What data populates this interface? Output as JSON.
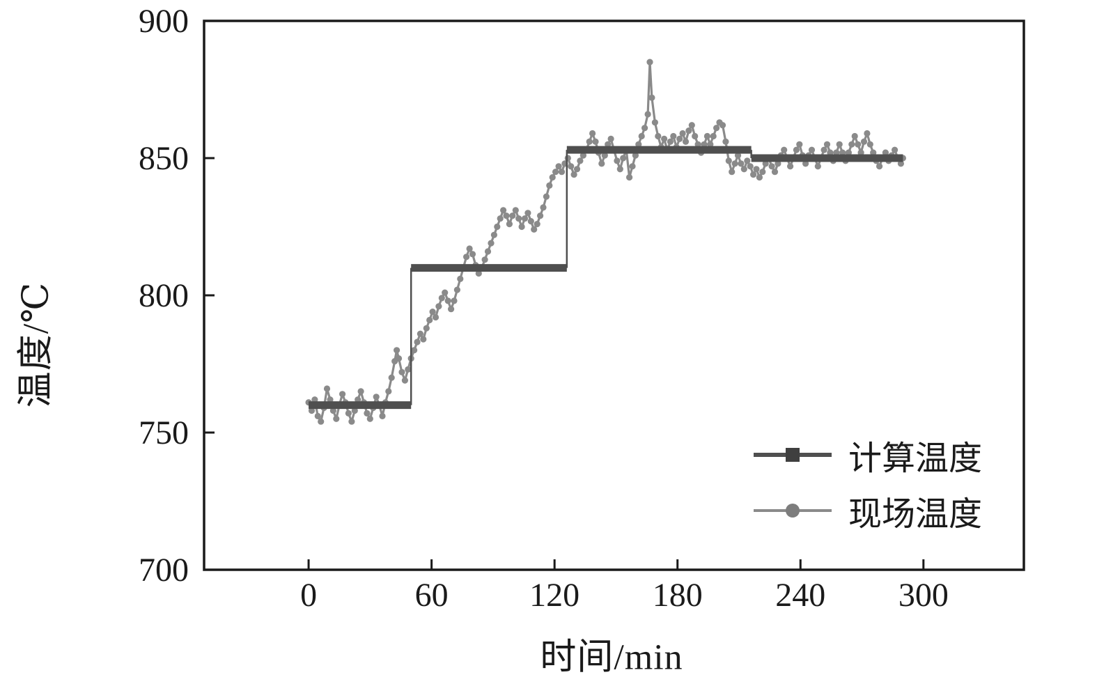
{
  "chart_data": {
    "type": "line",
    "title": "",
    "xlabel": "时间/min",
    "ylabel": "温度/℃",
    "xlim": [
      -51,
      349
    ],
    "ylim": [
      700,
      900
    ],
    "xticks": [
      0,
      60,
      120,
      180,
      240,
      300
    ],
    "yticks": [
      700,
      750,
      800,
      850,
      900
    ],
    "grid": false,
    "legend_position": "lower right",
    "frame_color": "#1a1a1a",
    "series": [
      {
        "name": "计算温度",
        "style": "step",
        "color": "#4f4f4f",
        "marker": "square",
        "segments": [
          {
            "x_start": 0,
            "x_end": 50,
            "y": 760
          },
          {
            "x_start": 50,
            "x_end": 126,
            "y": 810
          },
          {
            "x_start": 126,
            "x_end": 216,
            "y": 853
          },
          {
            "x_start": 216,
            "x_end": 290,
            "y": 850
          }
        ]
      },
      {
        "name": "现场温度",
        "style": "noisy-line",
        "color": "#8a8a8a",
        "marker": "circle",
        "points": [
          [
            0,
            761
          ],
          [
            1.5,
            758
          ],
          [
            3,
            762
          ],
          [
            4.5,
            756
          ],
          [
            6,
            754
          ],
          [
            7.5,
            759
          ],
          [
            9,
            766
          ],
          [
            10.5,
            762
          ],
          [
            12,
            758
          ],
          [
            13.5,
            755
          ],
          [
            15,
            760
          ],
          [
            16.5,
            764
          ],
          [
            18,
            761
          ],
          [
            19.5,
            757
          ],
          [
            21,
            754
          ],
          [
            22.5,
            758
          ],
          [
            24,
            762
          ],
          [
            25.5,
            765
          ],
          [
            27,
            761
          ],
          [
            28.5,
            757
          ],
          [
            30,
            755
          ],
          [
            31.5,
            759
          ],
          [
            33,
            763
          ],
          [
            34.5,
            760
          ],
          [
            36,
            756
          ],
          [
            37.5,
            761
          ],
          [
            39,
            765
          ],
          [
            40.5,
            770
          ],
          [
            42,
            776
          ],
          [
            43,
            780
          ],
          [
            44,
            777
          ],
          [
            45.5,
            772
          ],
          [
            47,
            769
          ],
          [
            48.5,
            773
          ],
          [
            50,
            777
          ],
          [
            51.5,
            780
          ],
          [
            53,
            783
          ],
          [
            54.5,
            786
          ],
          [
            56,
            784
          ],
          [
            57.5,
            788
          ],
          [
            59,
            791
          ],
          [
            60.5,
            794
          ],
          [
            62,
            792
          ],
          [
            63.5,
            796
          ],
          [
            65,
            799
          ],
          [
            66.5,
            801
          ],
          [
            68,
            798
          ],
          [
            69.5,
            795
          ],
          [
            71,
            798
          ],
          [
            72.5,
            802
          ],
          [
            74,
            806
          ],
          [
            75.5,
            810
          ],
          [
            77,
            814
          ],
          [
            78.5,
            817
          ],
          [
            80,
            815
          ],
          [
            81.5,
            811
          ],
          [
            83,
            808
          ],
          [
            84.5,
            810
          ],
          [
            86,
            813
          ],
          [
            87.5,
            816
          ],
          [
            89,
            819
          ],
          [
            90.5,
            822
          ],
          [
            92,
            825
          ],
          [
            93.5,
            828
          ],
          [
            95,
            831
          ],
          [
            96.5,
            829
          ],
          [
            98,
            826
          ],
          [
            99.5,
            829
          ],
          [
            101,
            831
          ],
          [
            102.5,
            828
          ],
          [
            104,
            825
          ],
          [
            105.5,
            828
          ],
          [
            107,
            830
          ],
          [
            108.5,
            827
          ],
          [
            110,
            824
          ],
          [
            111.5,
            826
          ],
          [
            113,
            829
          ],
          [
            114.5,
            832
          ],
          [
            116,
            836
          ],
          [
            117.5,
            840
          ],
          [
            119,
            843
          ],
          [
            120.5,
            845
          ],
          [
            122,
            847
          ],
          [
            123.5,
            845
          ],
          [
            125,
            848
          ],
          [
            126.5,
            850
          ],
          [
            128,
            847
          ],
          [
            129.5,
            844
          ],
          [
            131,
            846
          ],
          [
            132.5,
            849
          ],
          [
            134,
            851
          ],
          [
            135.5,
            853
          ],
          [
            137,
            856
          ],
          [
            138.5,
            859
          ],
          [
            140,
            856
          ],
          [
            141.5,
            852
          ],
          [
            143,
            848
          ],
          [
            144.5,
            851
          ],
          [
            146,
            855
          ],
          [
            147.5,
            857
          ],
          [
            149,
            853
          ],
          [
            150.5,
            849
          ],
          [
            152,
            846
          ],
          [
            153.5,
            850
          ],
          [
            155,
            853
          ],
          [
            156.5,
            843
          ],
          [
            158,
            847
          ],
          [
            159.5,
            851
          ],
          [
            161,
            855
          ],
          [
            162.5,
            858
          ],
          [
            164,
            861
          ],
          [
            165.5,
            866
          ],
          [
            166.5,
            885
          ],
          [
            167.5,
            872
          ],
          [
            169,
            863
          ],
          [
            170.5,
            858
          ],
          [
            172,
            854
          ],
          [
            173.5,
            857
          ],
          [
            175,
            853
          ],
          [
            176.5,
            856
          ],
          [
            178,
            858
          ],
          [
            179.5,
            854
          ],
          [
            181,
            857
          ],
          [
            182.5,
            859
          ],
          [
            184,
            856
          ],
          [
            185.5,
            860
          ],
          [
            187,
            862
          ],
          [
            188.5,
            858
          ],
          [
            190,
            855
          ],
          [
            191.5,
            852
          ],
          [
            193,
            855
          ],
          [
            194.5,
            858
          ],
          [
            196,
            855
          ],
          [
            197.5,
            858
          ],
          [
            199,
            861
          ],
          [
            200.5,
            863
          ],
          [
            202,
            862
          ],
          [
            203.5,
            856
          ],
          [
            205,
            849
          ],
          [
            206.5,
            845
          ],
          [
            208,
            848
          ],
          [
            209.5,
            851
          ],
          [
            211,
            848
          ],
          [
            212.5,
            846
          ],
          [
            214,
            849
          ],
          [
            215.5,
            847
          ],
          [
            217,
            844
          ],
          [
            218.5,
            846
          ],
          [
            220,
            843
          ],
          [
            221.5,
            845
          ],
          [
            223,
            848
          ],
          [
            224.5,
            850
          ],
          [
            226,
            847
          ],
          [
            227.5,
            845
          ],
          [
            229,
            848
          ],
          [
            230.5,
            851
          ],
          [
            232,
            853
          ],
          [
            233.5,
            850
          ],
          [
            235,
            847
          ],
          [
            236.5,
            850
          ],
          [
            238,
            853
          ],
          [
            239.5,
            855
          ],
          [
            241,
            851
          ],
          [
            242.5,
            848
          ],
          [
            244,
            851
          ],
          [
            245.5,
            853
          ],
          [
            247,
            850
          ],
          [
            248.5,
            847
          ],
          [
            250,
            850
          ],
          [
            251.5,
            853
          ],
          [
            253,
            855
          ],
          [
            254.5,
            852
          ],
          [
            256,
            849
          ],
          [
            257.5,
            852
          ],
          [
            259,
            855
          ],
          [
            260.5,
            852
          ],
          [
            262,
            849
          ],
          [
            263.5,
            852
          ],
          [
            265,
            855
          ],
          [
            266.5,
            858
          ],
          [
            268,
            855
          ],
          [
            269.5,
            852
          ],
          [
            271,
            856
          ],
          [
            272.5,
            859
          ],
          [
            274,
            855
          ],
          [
            275.5,
            852
          ],
          [
            277,
            849
          ],
          [
            278.5,
            847
          ],
          [
            280,
            850
          ],
          [
            281.5,
            852
          ],
          [
            283,
            849
          ],
          [
            284.5,
            851
          ],
          [
            286,
            853
          ],
          [
            287.5,
            850
          ],
          [
            289,
            848
          ],
          [
            290,
            850
          ]
        ]
      }
    ]
  },
  "axes": {
    "x_title": "时间/min",
    "y_title": "温度/℃"
  },
  "legend": {
    "items": [
      {
        "label": "计算温度",
        "color": "#4f4f4f",
        "marker": "square"
      },
      {
        "label": "现场温度",
        "color": "#8a8a8a",
        "marker": "circle"
      }
    ]
  }
}
